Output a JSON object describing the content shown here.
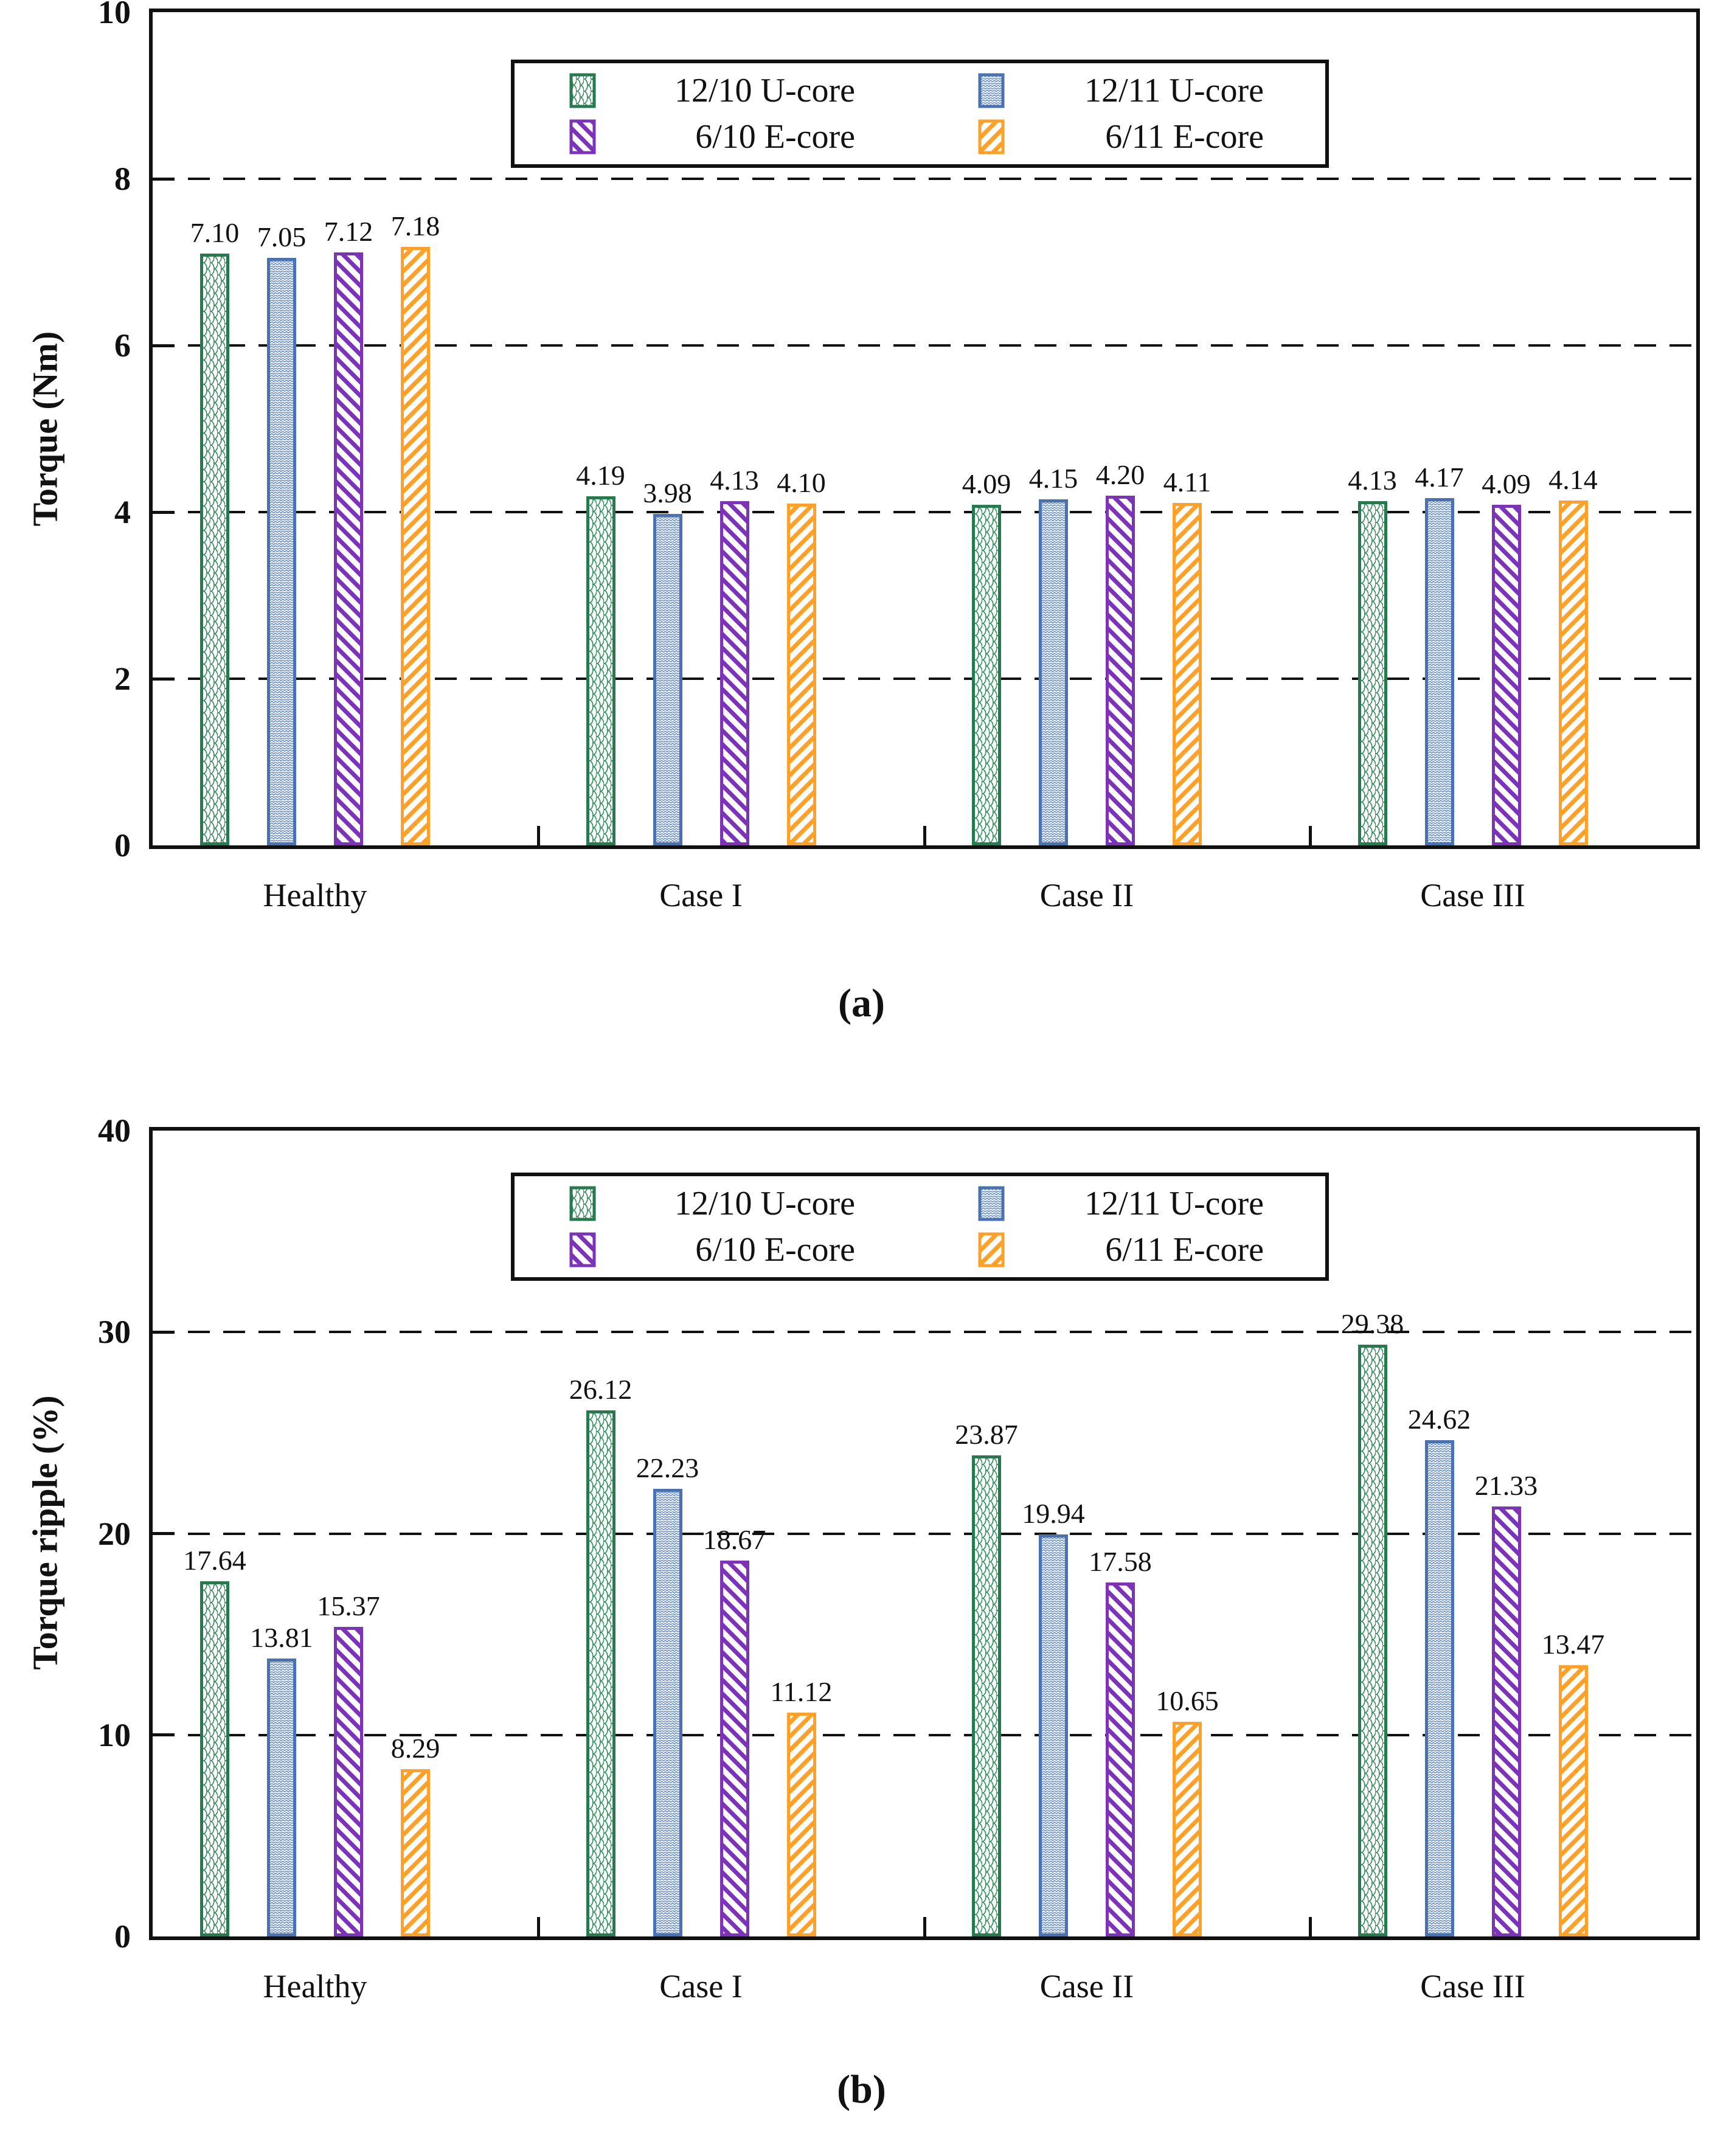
{
  "figure": {
    "background": "#ffffff",
    "text_color": "#111111",
    "panels": [
      "(a)",
      "(b)"
    ]
  },
  "chart_data": [
    {
      "type": "bar",
      "panel": "(a)",
      "title": "",
      "xlabel": "",
      "ylabel": "Torque (Nm)",
      "ylim": [
        0,
        10
      ],
      "yticks": [
        0,
        2,
        4,
        6,
        8,
        10
      ],
      "gridlines": [
        2,
        4,
        6,
        8
      ],
      "grid": "dashed horizontal",
      "legend_position": "top-center-inside",
      "categories": [
        "Healthy",
        "Case I",
        "Case II",
        "Case III"
      ],
      "series": [
        {
          "name": "12/10 U-core",
          "color": "#267A4E",
          "pattern_color": "#3A8F60",
          "pattern": "scale",
          "values": [
            7.1,
            4.19,
            4.09,
            4.13
          ],
          "labels": [
            "7.10",
            "4.19",
            "4.09",
            "4.13"
          ]
        },
        {
          "name": "12/11 U-core",
          "color": "#4A72B2",
          "pattern_color": "#6F93C6",
          "pattern": "weave",
          "values": [
            7.05,
            3.98,
            4.15,
            4.17
          ],
          "labels": [
            "7.05",
            "3.98",
            "4.15",
            "4.17"
          ]
        },
        {
          "name": "6/10 E-core",
          "color": "#7D33B8",
          "pattern_color": "#7D33B8",
          "pattern": "diag-down",
          "values": [
            7.12,
            4.13,
            4.2,
            4.09
          ],
          "labels": [
            "7.12",
            "4.13",
            "4.20",
            "4.09"
          ]
        },
        {
          "name": "6/11 E-core",
          "color": "#FFA128",
          "pattern_color": "#FFA128",
          "pattern": "diag-up",
          "values": [
            7.18,
            4.1,
            4.11,
            4.14
          ],
          "labels": [
            "7.18",
            "4.10",
            "4.11",
            "4.14"
          ]
        }
      ],
      "caption": "(a)"
    },
    {
      "type": "bar",
      "panel": "(b)",
      "title": "",
      "xlabel": "",
      "ylabel": "Torque ripple (%)",
      "ylim": [
        0,
        40
      ],
      "yticks": [
        0,
        10,
        20,
        30,
        40
      ],
      "gridlines": [
        10,
        20,
        30
      ],
      "grid": "dashed horizontal",
      "legend_position": "top-center-inside",
      "categories": [
        "Healthy",
        "Case I",
        "Case II",
        "Case III"
      ],
      "series": [
        {
          "name": "12/10 U-core",
          "color": "#267A4E",
          "pattern_color": "#3A8F60",
          "pattern": "scale",
          "values": [
            17.64,
            26.12,
            23.87,
            29.38
          ],
          "labels": [
            "17.64",
            "26.12",
            "23.87",
            "29.38"
          ]
        },
        {
          "name": "12/11 U-core",
          "color": "#4A72B2",
          "pattern_color": "#6F93C6",
          "pattern": "weave",
          "values": [
            13.81,
            22.23,
            19.94,
            24.62
          ],
          "labels": [
            "13.81",
            "22.23",
            "19.94",
            "24.62"
          ]
        },
        {
          "name": "6/10 E-core",
          "color": "#7D33B8",
          "pattern_color": "#7D33B8",
          "pattern": "diag-down",
          "values": [
            15.37,
            18.67,
            17.58,
            21.33
          ],
          "labels": [
            "15.37",
            "18.67",
            "17.58",
            "21.33"
          ]
        },
        {
          "name": "6/11 E-core",
          "color": "#FFA128",
          "pattern_color": "#FFA128",
          "pattern": "diag-up",
          "values": [
            8.29,
            11.12,
            10.65,
            13.47
          ],
          "labels": [
            "8.29",
            "11.12",
            "10.65",
            "13.47"
          ]
        }
      ],
      "caption": "(b)"
    }
  ]
}
